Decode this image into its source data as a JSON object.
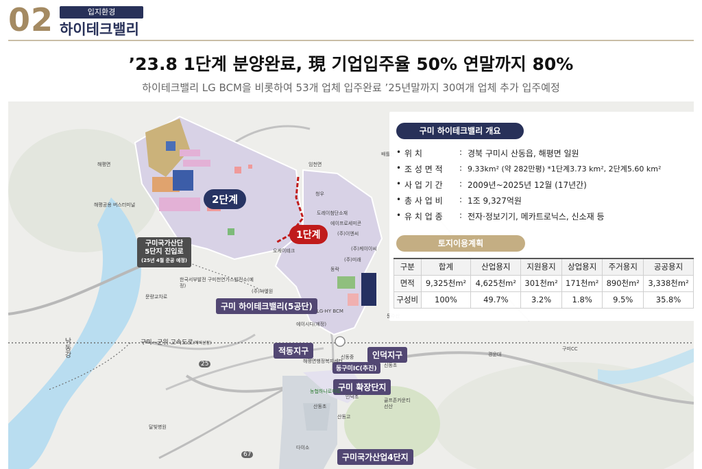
{
  "header": {
    "section_number": "02",
    "section_badge": "입지환경",
    "section_title": "하이테크밸리"
  },
  "headline": "’23.8 1단계 분양완료, 現 기업입주율 50% 연말까지 80%",
  "subheadline": "하이테크밸리 LG BCM을 비롯하여 53개 업체 입주완료 ’25년말까지 30여개 업체 추가 입주예정",
  "map": {
    "labels": {
      "phase2": "2단계",
      "phase1": "1단계",
      "hitech_5": "구미 하이테크밸리(5공단)",
      "jeokdong": "적동지구",
      "indeok": "인덕지구",
      "ic": "동구미IC(추진)",
      "expansion": "구미 확장단지",
      "national4": "구미국가산업4단지",
      "expressway": "구미~군위 고속도로",
      "expressway_note": "(예비선정)",
      "access_road_line1": "구미국가산단",
      "access_road_line2": "5단지 진입로",
      "access_road_note": "(25년 4월 준공 예정)",
      "river": "낙동강",
      "route_25": "25",
      "route_67": "67",
      "route_25b": "25"
    },
    "places": [
      "해평면",
      "해평공용 버스터미널",
      "문량교차로",
      "달빛병원",
      "LG·HY BCM",
      "오케이테크",
      "(주)미래",
      "도레이첨단소재",
      "에이프로세미콘",
      "(주)이엔씨",
      "에이시디(예정)",
      "(주)씨엔원",
      "한국서부발전 구미천연가스발전소(예정)",
      "신동중",
      "신동초",
      "산동초",
      "산동고",
      "인덕초",
      "다이소",
      "골프존카운티 선산",
      "경운대",
      "구미CC",
      "문수산",
      "배틀산",
      "임천면",
      "청우",
      "(주)케이이씨",
      "해평면행정복지센터",
      "동락",
      "농협하나로마트"
    ]
  },
  "overview": {
    "title": "구미 하이테크밸리 개요",
    "rows": [
      {
        "key": "위        치",
        "value": "경북 구미시 산동읍, 해평면 일원"
      },
      {
        "key": "조 성 면 적",
        "value": "9.33km² (약 282만평) *1단계3.73 km², 2단계5.60 km²"
      },
      {
        "key": "사 업 기 간",
        "value": "2009년~2025년 12월 (17년간)"
      },
      {
        "key": "총 사 업 비",
        "value": "1조 9,327억원"
      },
      {
        "key": "유 치 업 종",
        "value": "전자·정보기기, 메카트로닉스, 신소재 등"
      }
    ]
  },
  "land_use": {
    "title": "토지이용계획",
    "headers": [
      "구분",
      "합계",
      "산업용지",
      "지원용지",
      "상업용지",
      "주거용지",
      "공공용지"
    ],
    "rows": [
      [
        "면적",
        "9,325천m²",
        "4,625천m²",
        "301천m²",
        "171천m²",
        "890천m²",
        "3,338천m²"
      ],
      [
        "구성비",
        "100%",
        "49.7%",
        "3.2%",
        "1.8%",
        "9.5%",
        "35.8%"
      ]
    ]
  },
  "colors": {
    "navy": "#283159",
    "gold": "#a48a62",
    "red_accent": "#c01b1b",
    "purple_tag": "#524773",
    "phase_area": "#d8d2e6"
  }
}
